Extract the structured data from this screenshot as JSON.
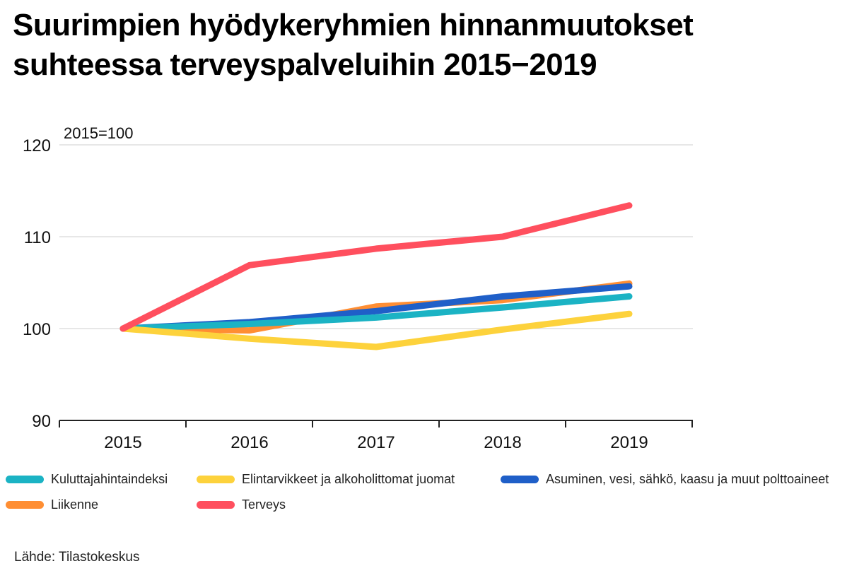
{
  "title_line1": "Suurimpien hyödykeryhmien hinnanmuutokset",
  "title_line2": "suhteessa terveyspalveluihin 2015−2019",
  "source": "Lähde: Tilastokeskus",
  "chart_data": {
    "type": "line",
    "title": "Suurimpien hyödykeryhmien hinnanmuutokset suhteessa terveyspalveluihin 2015−2019",
    "ylabel": "2015=100",
    "xlabel": "",
    "x": [
      "2015",
      "2016",
      "2017",
      "2018",
      "2019"
    ],
    "ylim": [
      90,
      120
    ],
    "yticks": [
      "90",
      "100",
      "110",
      "120"
    ],
    "grid": true,
    "legend_position": "bottom",
    "series": [
      {
        "name": "Kuluttajahintaindeksi",
        "color": "#1BB3C4",
        "values": [
          100,
          100.5,
          101.2,
          102.3,
          103.5
        ]
      },
      {
        "name": "Elintarvikkeet ja alkoholittomat juomat",
        "color": "#FDD23C",
        "values": [
          100,
          98.9,
          98.0,
          99.9,
          101.6
        ]
      },
      {
        "name": "Asuminen, vesi, sähkö, kaasu ja muut polttoaineet",
        "color": "#1F5FC8",
        "values": [
          100,
          100.7,
          101.9,
          103.5,
          104.6
        ]
      },
      {
        "name": "Liikenne",
        "color": "#FF8E33",
        "values": [
          100,
          99.8,
          102.4,
          103.1,
          104.9
        ]
      },
      {
        "name": "Terveys",
        "color": "#FF4F5E",
        "values": [
          100,
          106.9,
          108.7,
          110.0,
          113.4
        ]
      }
    ],
    "draw_order": [
      3,
      2,
      0,
      1,
      4
    ]
  }
}
